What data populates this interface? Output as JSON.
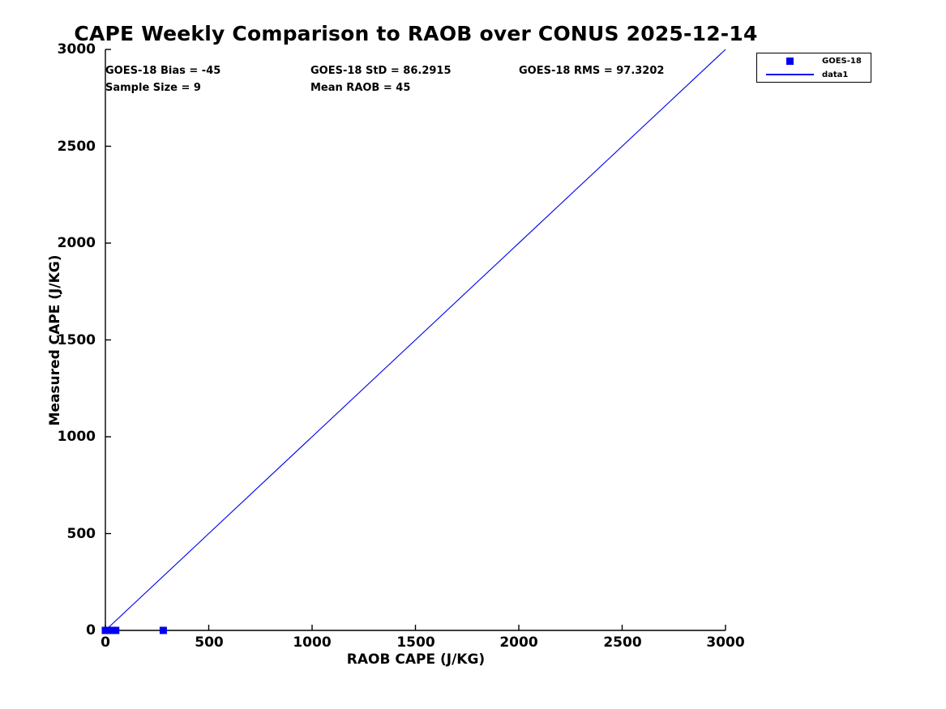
{
  "chart_data": {
    "type": "scatter",
    "title": "CAPE Weekly Comparison to RAOB over CONUS 2025-12-14",
    "xlabel": "RAOB CAPE (J/KG)",
    "ylabel": "Measured CAPE (J/KG)",
    "xlim": [
      0,
      3000
    ],
    "ylim": [
      0,
      3000
    ],
    "x_ticks": [
      0,
      500,
      1000,
      1500,
      2000,
      2500,
      3000
    ],
    "y_ticks": [
      0,
      500,
      1000,
      1500,
      2000,
      2500,
      3000
    ],
    "grid": false,
    "tick_direction": "in",
    "legend": {
      "position": "outside-top-right",
      "entries": [
        "GOES-18",
        "data1"
      ]
    },
    "annotations": [
      "GOES-18 Bias = -45",
      "GOES-18 StD = 86.2915",
      "GOES-18 RMS = 97.3202",
      "Sample Size = 9",
      "Mean RAOB = 45"
    ],
    "series": [
      {
        "name": "GOES-18",
        "type": "scatter",
        "marker": "filled-square",
        "color": "#0000ee",
        "points": [
          [
            0,
            0
          ],
          [
            0,
            0
          ],
          [
            5,
            0
          ],
          [
            10,
            0
          ],
          [
            15,
            0
          ],
          [
            20,
            0
          ],
          [
            25,
            0
          ],
          [
            50,
            0
          ],
          [
            280,
            0
          ]
        ]
      },
      {
        "name": "data1",
        "type": "line",
        "color": "#0000ee",
        "points": [
          [
            0,
            0
          ],
          [
            3000,
            3000
          ]
        ]
      }
    ]
  },
  "colors": {
    "series_blue": "#0000ee",
    "axis": "#000000",
    "text": "#000000",
    "background": "#ffffff"
  }
}
